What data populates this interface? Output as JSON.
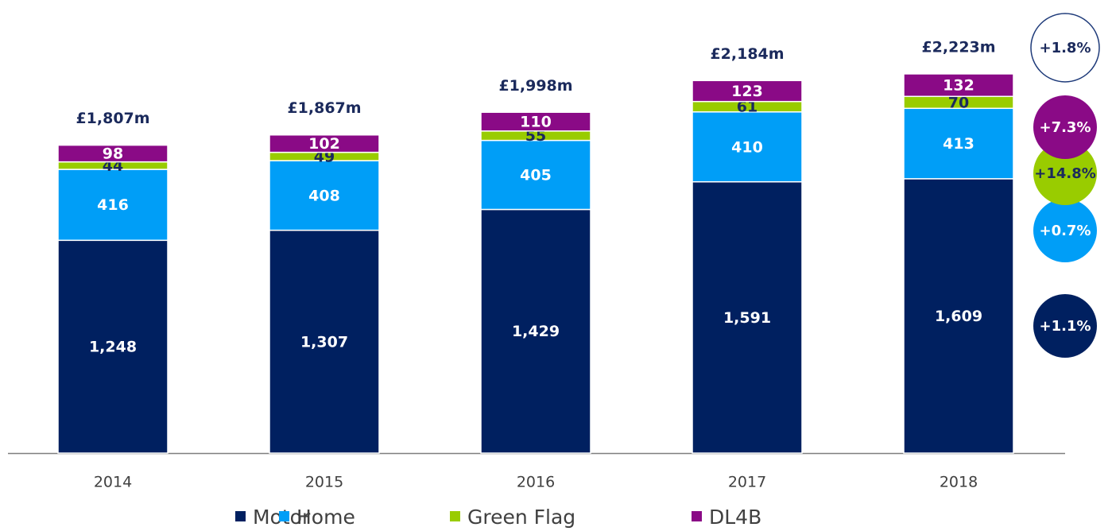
{
  "chart_data": {
    "type": "stacked_bar",
    "categories": [
      "2014",
      "2015",
      "2016",
      "2017",
      "2018"
    ],
    "series": [
      {
        "name": "Motor",
        "color": "#002060",
        "values": [
          1248,
          1307,
          1429,
          1591,
          1609
        ],
        "value_labels": [
          "1,248",
          "1,307",
          "1,429",
          "1,591",
          "1,609"
        ],
        "growth": "+1.1%"
      },
      {
        "name": "Home",
        "color": "#009ef7",
        "values": [
          416,
          408,
          405,
          410,
          413
        ],
        "growth": "+0.7%"
      },
      {
        "name": "Green Flag",
        "color": "#99cc00",
        "values": [
          44,
          49,
          55,
          61,
          70
        ],
        "growth": "+14.8%"
      },
      {
        "name": "DL4B",
        "color": "#8a0a86",
        "values": [
          98,
          102,
          110,
          123,
          132
        ],
        "growth": "+7.3%"
      }
    ],
    "totals": {
      "values": [
        1807,
        1867,
        1998,
        2184,
        2223
      ],
      "value_labels": [
        "£1,807m",
        "£1,867m",
        "£1,998m",
        "£2,184m",
        "£2,223m"
      ],
      "growth": "+1.8%"
    }
  }
}
